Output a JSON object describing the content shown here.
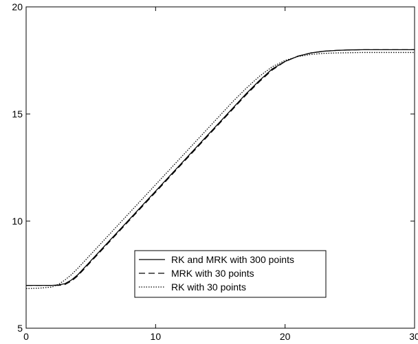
{
  "chart_data": {
    "type": "line",
    "title": "",
    "xlabel": "",
    "ylabel": "",
    "xlim": [
      0,
      30
    ],
    "ylim": [
      5,
      20
    ],
    "x_ticks": [
      0,
      10,
      20,
      30
    ],
    "y_ticks": [
      5,
      10,
      15,
      20
    ],
    "x_tick_labels": [
      "0",
      "10",
      "20",
      "30"
    ],
    "y_tick_labels": [
      "5",
      "10",
      "15",
      "20"
    ],
    "grid": false,
    "legend_position": "bottom-center",
    "series": [
      {
        "name": "RK and MRK with 300 points",
        "line_style": "solid",
        "color": "#000000",
        "x": [
          0,
          1,
          2,
          2.5,
          3,
          3.5,
          4,
          5,
          6,
          7,
          8,
          9,
          10,
          11,
          12,
          13,
          14,
          15,
          16,
          17,
          18,
          19,
          20,
          21,
          22,
          23,
          24,
          25,
          26,
          27,
          28,
          29,
          30
        ],
        "y": [
          7.0,
          7.0,
          7.0,
          7.02,
          7.08,
          7.25,
          7.5,
          8.15,
          8.8,
          9.45,
          10.1,
          10.75,
          11.4,
          12.05,
          12.7,
          13.35,
          14.0,
          14.65,
          15.3,
          15.95,
          16.55,
          17.1,
          17.45,
          17.7,
          17.85,
          17.93,
          17.97,
          17.99,
          18.0,
          18.0,
          18.0,
          18.0,
          18.0
        ]
      },
      {
        "name": "MRK with 30 points",
        "line_style": "dashed",
        "color": "#000000",
        "x": [
          0,
          1,
          2,
          2.5,
          3,
          3.5,
          4,
          5,
          6,
          7,
          8,
          9,
          10,
          11,
          12,
          13,
          14,
          15,
          16,
          17,
          18,
          19,
          20,
          21,
          22,
          23,
          24,
          25,
          26,
          27,
          28,
          29,
          30
        ],
        "y": [
          7.0,
          7.0,
          7.0,
          7.0,
          7.04,
          7.2,
          7.45,
          8.1,
          8.75,
          9.4,
          10.05,
          10.7,
          11.35,
          12.0,
          12.65,
          13.3,
          13.95,
          14.6,
          15.25,
          15.9,
          16.5,
          17.05,
          17.45,
          17.7,
          17.85,
          17.93,
          17.97,
          17.99,
          18.0,
          18.0,
          18.0,
          18.0,
          18.0
        ]
      },
      {
        "name": "RK with 30 points",
        "line_style": "dotted",
        "color": "#000000",
        "x": [
          0,
          1,
          2,
          2.5,
          3,
          3.5,
          4,
          5,
          6,
          7,
          8,
          9,
          10,
          11,
          12,
          13,
          14,
          15,
          16,
          17,
          18,
          19,
          20,
          21,
          22,
          23,
          24,
          25,
          26,
          27,
          28,
          29,
          30
        ],
        "y": [
          6.85,
          6.87,
          6.92,
          7.05,
          7.25,
          7.5,
          7.8,
          8.45,
          9.1,
          9.75,
          10.4,
          11.05,
          11.7,
          12.35,
          13.0,
          13.65,
          14.3,
          14.95,
          15.6,
          16.2,
          16.75,
          17.2,
          17.5,
          17.68,
          17.78,
          17.83,
          17.85,
          17.86,
          17.87,
          17.87,
          17.87,
          17.87,
          17.87
        ]
      }
    ]
  }
}
